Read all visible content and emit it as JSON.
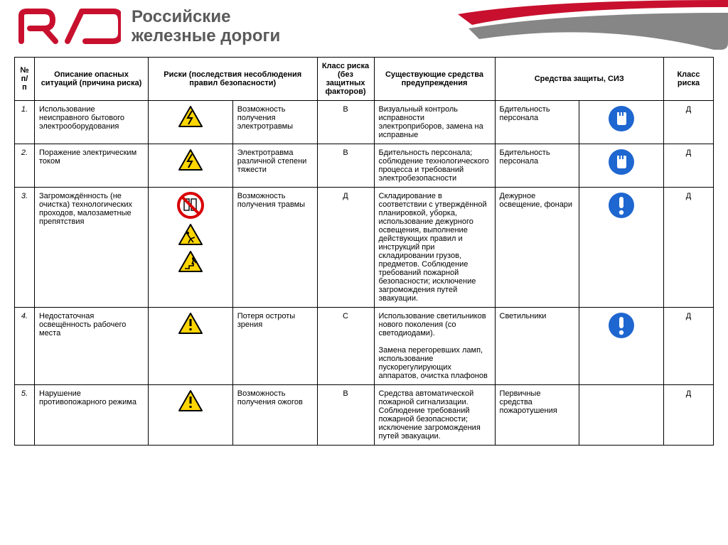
{
  "brand": {
    "title_line1": "Российские",
    "title_line2": "железные дороги",
    "logo_color": "#c8102e",
    "text_color": "#5a5a5a"
  },
  "swoosh": {
    "top_color": "#c8102e",
    "bottom_color": "#868686"
  },
  "table": {
    "headers": {
      "num": "№ п/п",
      "desc": "Описание опасных ситуаций (причина риска)",
      "risks": "Риски (последствия несоблюдения правил безопасности)",
      "class1": "Класс риска (без защитных факторов)",
      "prevention": "Существующие средства предупреждения",
      "protection": "Средства защиты, СИЗ",
      "class2": "Класс риска"
    },
    "rows": [
      {
        "num": "1.",
        "desc": "Использование неисправного бытового электрооборудования",
        "risk_icons": [
          "electric"
        ],
        "risk_text": "Возможность получения электротравмы",
        "class1": "В",
        "prevention": "Визуальный контроль исправности электроприборов, замена на исправные",
        "protection_text": "Бдительность персонала",
        "protection_icons": [
          "gloves"
        ],
        "class2": "Д"
      },
      {
        "num": "2.",
        "desc": "Поражение электрическим током",
        "risk_icons": [
          "electric"
        ],
        "risk_text": "Электротравма различной степени тяжести",
        "class1": "В",
        "prevention": "Бдительность персонала; соблюдение технологического процесса и требований электробезопасности",
        "protection_text": "Бдительность персонала",
        "protection_icons": [
          "gloves"
        ],
        "class2": "Д"
      },
      {
        "num": "3.",
        "desc": "Загромождённость (не очистка) технологических проходов, малозаметные препятствия",
        "risk_icons": [
          "no-obstruction",
          "trip",
          "fall"
        ],
        "risk_text": "Возможность получения травмы",
        "class1": "Д",
        "prevention": "Складирование в соответствии с утверждённой планировкой, уборка, использование дежурного освещения, выполнение действующих правил и инструкций при складировании грузов, предметов. Соблюдение требований пожарной безопасности; исключение загромождения путей эвакуации.",
        "protection_text": "Дежурное освещение, фонари",
        "protection_icons": [
          "attention"
        ],
        "class2": "Д"
      },
      {
        "num": "4.",
        "desc": "Недостаточная освещённость рабочего места",
        "risk_icons": [
          "warning"
        ],
        "risk_text": "Потеря остроты зрения",
        "class1": "С",
        "prevention": "Использование светильников нового поколения (со светодиодами).\n\nЗамена перегоревших ламп, использование пускорегулирующих аппаратов, очистка плафонов",
        "protection_text": "Светильники",
        "protection_icons": [
          "attention"
        ],
        "class2": "Д"
      },
      {
        "num": "5.",
        "desc": "Нарушение противопожарного режима",
        "risk_icons": [
          "warning"
        ],
        "risk_text": "Возможность получения ожогов",
        "class1": "В",
        "prevention": "Средства автоматической пожарной сигнализации. Соблюдение требований пожарной безопасности; исключение загромождения путей эвакуации.",
        "protection_text": "Первичные средства пожаротушения",
        "protection_icons": [],
        "class2": "Д"
      }
    ]
  },
  "icons": {
    "warning_fill": "#ffd500",
    "warning_stroke": "#000000",
    "prohibit_stroke": "#d80000",
    "mandatory_fill": "#1e66d0",
    "mandatory_inner": "#ffffff"
  }
}
